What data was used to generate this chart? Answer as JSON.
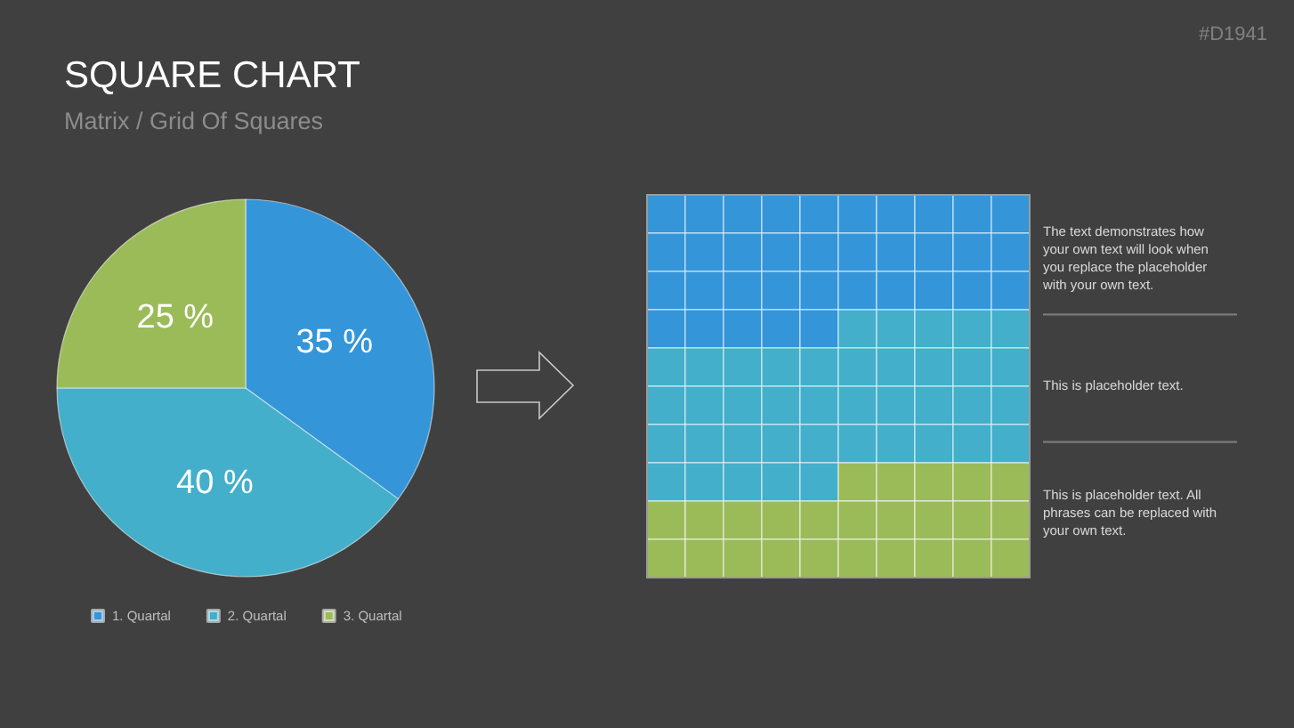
{
  "chart_data": {
    "type": "pie",
    "title": "SQUARE CHART",
    "subtitle": "Matrix / Grid Of Squares",
    "categories": [
      "1. Quartal",
      "2. Quartal",
      "3. Quartal"
    ],
    "values": [
      35,
      40,
      25
    ],
    "colors": [
      "#3595d9",
      "#43afca",
      "#9bbb59"
    ],
    "value_labels": [
      "35 %",
      "40 %",
      "25 %"
    ],
    "legend": "bottom",
    "annotations": [
      "The text demonstrates how your own text will look when you replace the placeholder with your own text.",
      "This is placeholder text.",
      "This is placeholder text. All phrases can be replaced with your own text.",
      "#D1941"
    ]
  }
}
